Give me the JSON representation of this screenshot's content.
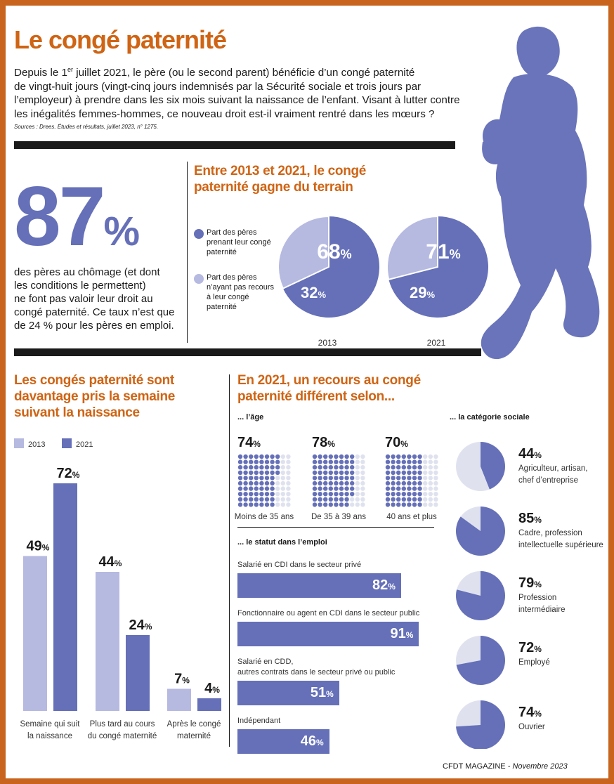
{
  "title": "Le congé paternité",
  "intro": {
    "line1_a": "Depuis le 1",
    "line1_sup": "er",
    "line1_b": " juillet 2021, le père (ou le second parent) bénéficie d’un congé paternité",
    "line2": "de vingt-huit jours (vingt-cinq jours indemnisés par la Sécurité sociale et trois jours par",
    "line3": "l’employeur) à prendre dans les six mois suivant la naissance de l’enfant. Visant à lutter contre",
    "line4": "les inégalités femmes-hommes, ce nouveau droit est-il vraiment rentré dans les mœurs ?",
    "source": "Sources : Drees. Études et résultats, juillet 2023, n° 1275."
  },
  "colors": {
    "dark": "#6570b8",
    "light": "#b6b9e0",
    "pale": "#dfe2ee",
    "accent": "#cf6414",
    "silhouette": "#6a74ba"
  },
  "stat87": {
    "number": "87",
    "pct": "%",
    "lines": [
      "des pères au chômage (et dont",
      "les conditions le permettent)",
      "ne font pas valoir leur droit au",
      "congé paternité. Ce taux n’est que",
      "de 24 % pour les pères en emploi."
    ]
  },
  "section_pies": {
    "title_line1": "Entre 2013 et 2021, le congé",
    "title_line2": "paternité gagne du terrain",
    "legend_taking": [
      "Part des pères",
      "prenant leur congé",
      "paternité"
    ],
    "legend_not": [
      "Part des pères",
      "n’ayant pas recours",
      "à leur congé",
      "paternité"
    ]
  },
  "section_bars": {
    "title_line1": "Les congés paternité sont",
    "title_line2": "davantage pris la semaine",
    "title_line3": "suivant la naissance"
  },
  "section_recours": {
    "title_line1": "En 2021, un recours au congé",
    "title_line2": "paternité différent selon...",
    "age_title": "... l’âge",
    "statut_title": "... le statut dans l’emploi",
    "cat_title": "... la catégorie sociale"
  },
  "chart_data": [
    {
      "type": "pie",
      "title": "Entre 2013 et 2021, le congé paternité gagne du terrain",
      "categories": [
        "2013",
        "2021"
      ],
      "series": [
        {
          "name": "Part des pères prenant leur congé paternité",
          "values": [
            68,
            71
          ]
        },
        {
          "name": "Part des pères n’ayant pas recours à leur congé paternité",
          "values": [
            32,
            29
          ]
        }
      ],
      "labels": [
        [
          "68",
          "32"
        ],
        [
          "71",
          "29"
        ]
      ],
      "unit": "%"
    },
    {
      "type": "bar",
      "title": "Les congés paternité sont davantage pris la semaine suivant la naissance",
      "categories": [
        [
          "Semaine qui suit",
          "la naissance"
        ],
        [
          "Plus tard au cours",
          "du congé maternité"
        ],
        [
          "Après le congé",
          "maternité"
        ]
      ],
      "series": [
        {
          "name": "2013",
          "values": [
            49,
            44,
            7
          ]
        },
        {
          "name": "2021",
          "values": [
            72,
            24,
            4
          ]
        }
      ],
      "ylim": [
        0,
        72
      ],
      "unit": "%",
      "legend": "top-left"
    },
    {
      "type": "bar",
      "title": "... l’âge",
      "categories": [
        "Moins de 35 ans",
        "De 35 à 39 ans",
        "40 ans et plus"
      ],
      "values": [
        74,
        78,
        70
      ],
      "unit": "%",
      "display": "dot-grid"
    },
    {
      "type": "bar",
      "orientation": "horizontal",
      "title": "... le statut dans l’emploi",
      "categories": [
        [
          "Salarié en CDI dans le secteur privé"
        ],
        [
          "Fonctionnaire ou agent en CDI dans le secteur public"
        ],
        [
          "Salarié en CDD,",
          "autres contrats dans le secteur privé ou public"
        ],
        [
          "Indépendant"
        ]
      ],
      "values": [
        82,
        91,
        51,
        46
      ],
      "unit": "%"
    },
    {
      "type": "pie",
      "title": "... la catégorie sociale",
      "categories": [
        [
          "Agriculteur, artisan,",
          "chef d’entreprise"
        ],
        [
          "Cadre, profession",
          "intellectuelle supérieure"
        ],
        [
          "Profession",
          "intermédiaire"
        ],
        [
          "Employé"
        ],
        [
          "Ouvrier"
        ]
      ],
      "values": [
        44,
        85,
        79,
        72,
        74
      ],
      "unit": "%"
    }
  ],
  "footer": {
    "mag": "CFDT MAGAZINE",
    "date": " - Novembre 2023"
  }
}
